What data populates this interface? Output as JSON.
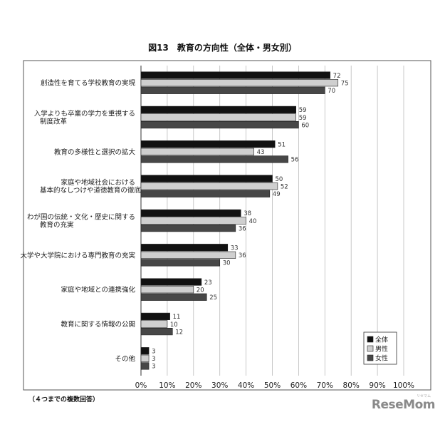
{
  "footnote": "（４つまでの複数回答）",
  "logo": {
    "text": "ReseMom",
    "sub": "リセマム"
  },
  "chart_data": {
    "type": "bar",
    "orientation": "horizontal",
    "title": "図13　教育の方向性（全体・男女別）",
    "categories": [
      [
        "創造性を育てる学校教育の実現"
      ],
      [
        "入学よりも卒業の学力を重視する",
        "制度改革"
      ],
      [
        "教育の多様性と選択の拡大"
      ],
      [
        "家庭や地域社会における",
        "基本的なしつけや道徳教育の徹底"
      ],
      [
        "わが国の伝統・文化・歴史に関する",
        "教育の充実"
      ],
      [
        "大学や大学院における専門教育の充実"
      ],
      [
        "家庭や地域との連携強化"
      ],
      [
        "教育に関する情報の公開"
      ],
      [
        "その他"
      ]
    ],
    "series": [
      {
        "name": "全体",
        "color": "#111111",
        "values": [
          72,
          59,
          51,
          50,
          38,
          33,
          23,
          11,
          3
        ]
      },
      {
        "name": "男性",
        "color": "#cfcfcf",
        "values": [
          75,
          59,
          43,
          52,
          40,
          36,
          20,
          10,
          3
        ]
      },
      {
        "name": "女性",
        "color": "#474747",
        "values": [
          70,
          60,
          56,
          49,
          36,
          30,
          25,
          12,
          3
        ]
      }
    ],
    "xlim": [
      0,
      100
    ],
    "xticks": [
      "0%",
      "10%",
      "20%",
      "30%",
      "40%",
      "50%",
      "60%",
      "70%",
      "80%",
      "90%",
      "100%"
    ],
    "legend": "bottom-right",
    "grid": true
  }
}
